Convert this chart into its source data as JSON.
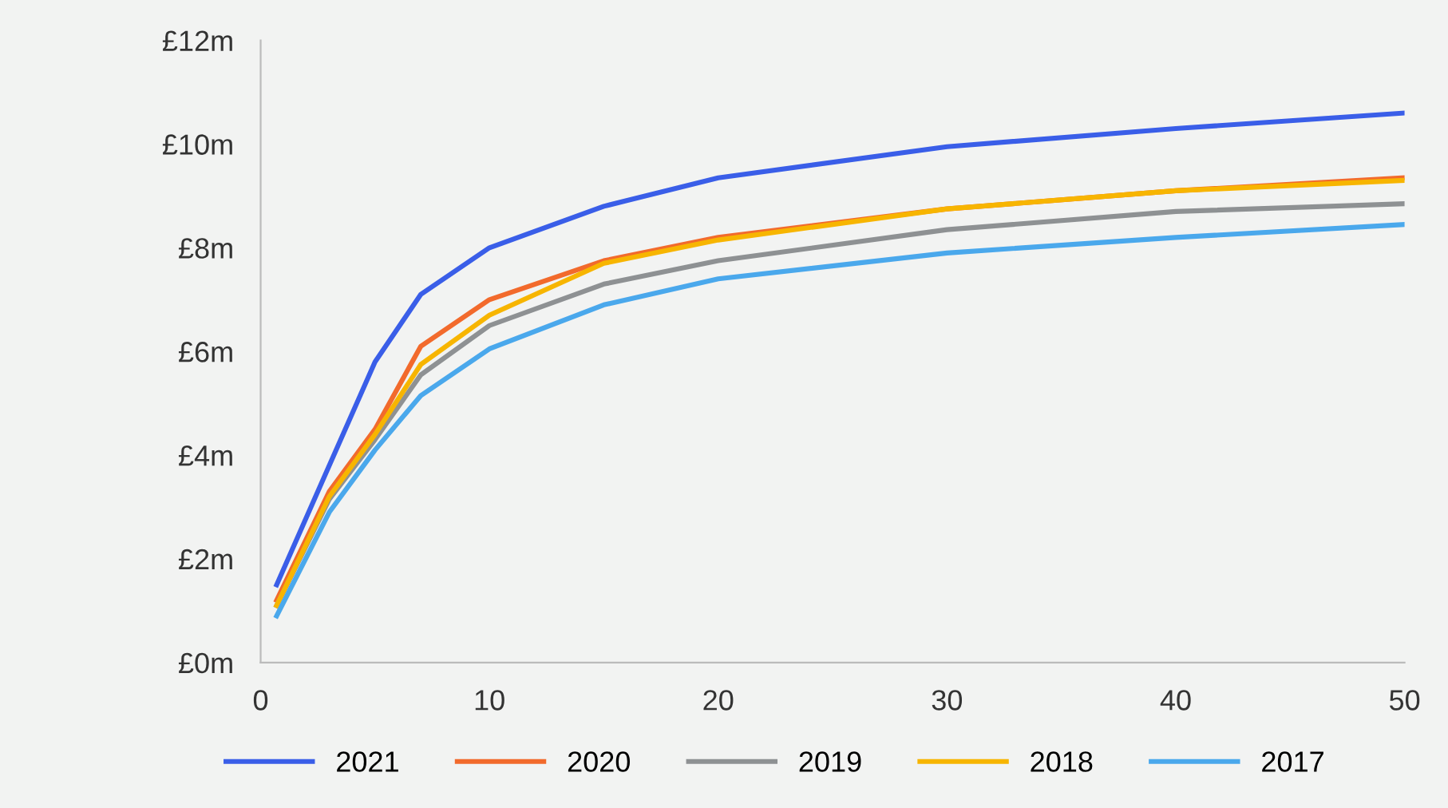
{
  "chart_data": {
    "type": "line",
    "xlim": [
      0,
      50
    ],
    "xticks": [
      0,
      10,
      20,
      30,
      40,
      50
    ],
    "ylim": [
      0,
      12
    ],
    "yticks": [
      {
        "value": 0,
        "label": "£0m"
      },
      {
        "value": 2,
        "label": "£2m"
      },
      {
        "value": 4,
        "label": "£4m"
      },
      {
        "value": 6,
        "label": "£6m"
      },
      {
        "value": 8,
        "label": "£8m"
      },
      {
        "value": 10,
        "label": "£10m"
      },
      {
        "value": 12,
        "label": "£12m"
      }
    ],
    "grid": false,
    "legend": "bottom",
    "marker": "none",
    "line_style": "solid",
    "x": [
      0.7,
      3,
      5,
      7,
      10,
      15,
      20,
      30,
      40,
      50
    ],
    "series": [
      {
        "name": "2021",
        "color": "#3a5ee8",
        "values": [
          1.5,
          3.8,
          5.8,
          7.1,
          8.0,
          8.8,
          9.35,
          9.95,
          10.3,
          10.6
        ]
      },
      {
        "name": "2020",
        "color": "#f26a2c",
        "values": [
          1.2,
          3.3,
          4.5,
          6.1,
          7.0,
          7.75,
          8.2,
          8.75,
          9.1,
          9.35
        ]
      },
      {
        "name": "2019",
        "color": "#8e9193",
        "values": [
          1.1,
          3.15,
          4.3,
          5.55,
          6.5,
          7.3,
          7.75,
          8.35,
          8.7,
          8.85
        ]
      },
      {
        "name": "2018",
        "color": "#f7b500",
        "values": [
          1.1,
          3.2,
          4.4,
          5.75,
          6.7,
          7.7,
          8.15,
          8.75,
          9.1,
          9.3
        ]
      },
      {
        "name": "2017",
        "color": "#4aa8ec",
        "values": [
          0.9,
          2.9,
          4.1,
          5.15,
          6.05,
          6.9,
          7.4,
          7.9,
          8.2,
          8.45
        ]
      }
    ]
  }
}
